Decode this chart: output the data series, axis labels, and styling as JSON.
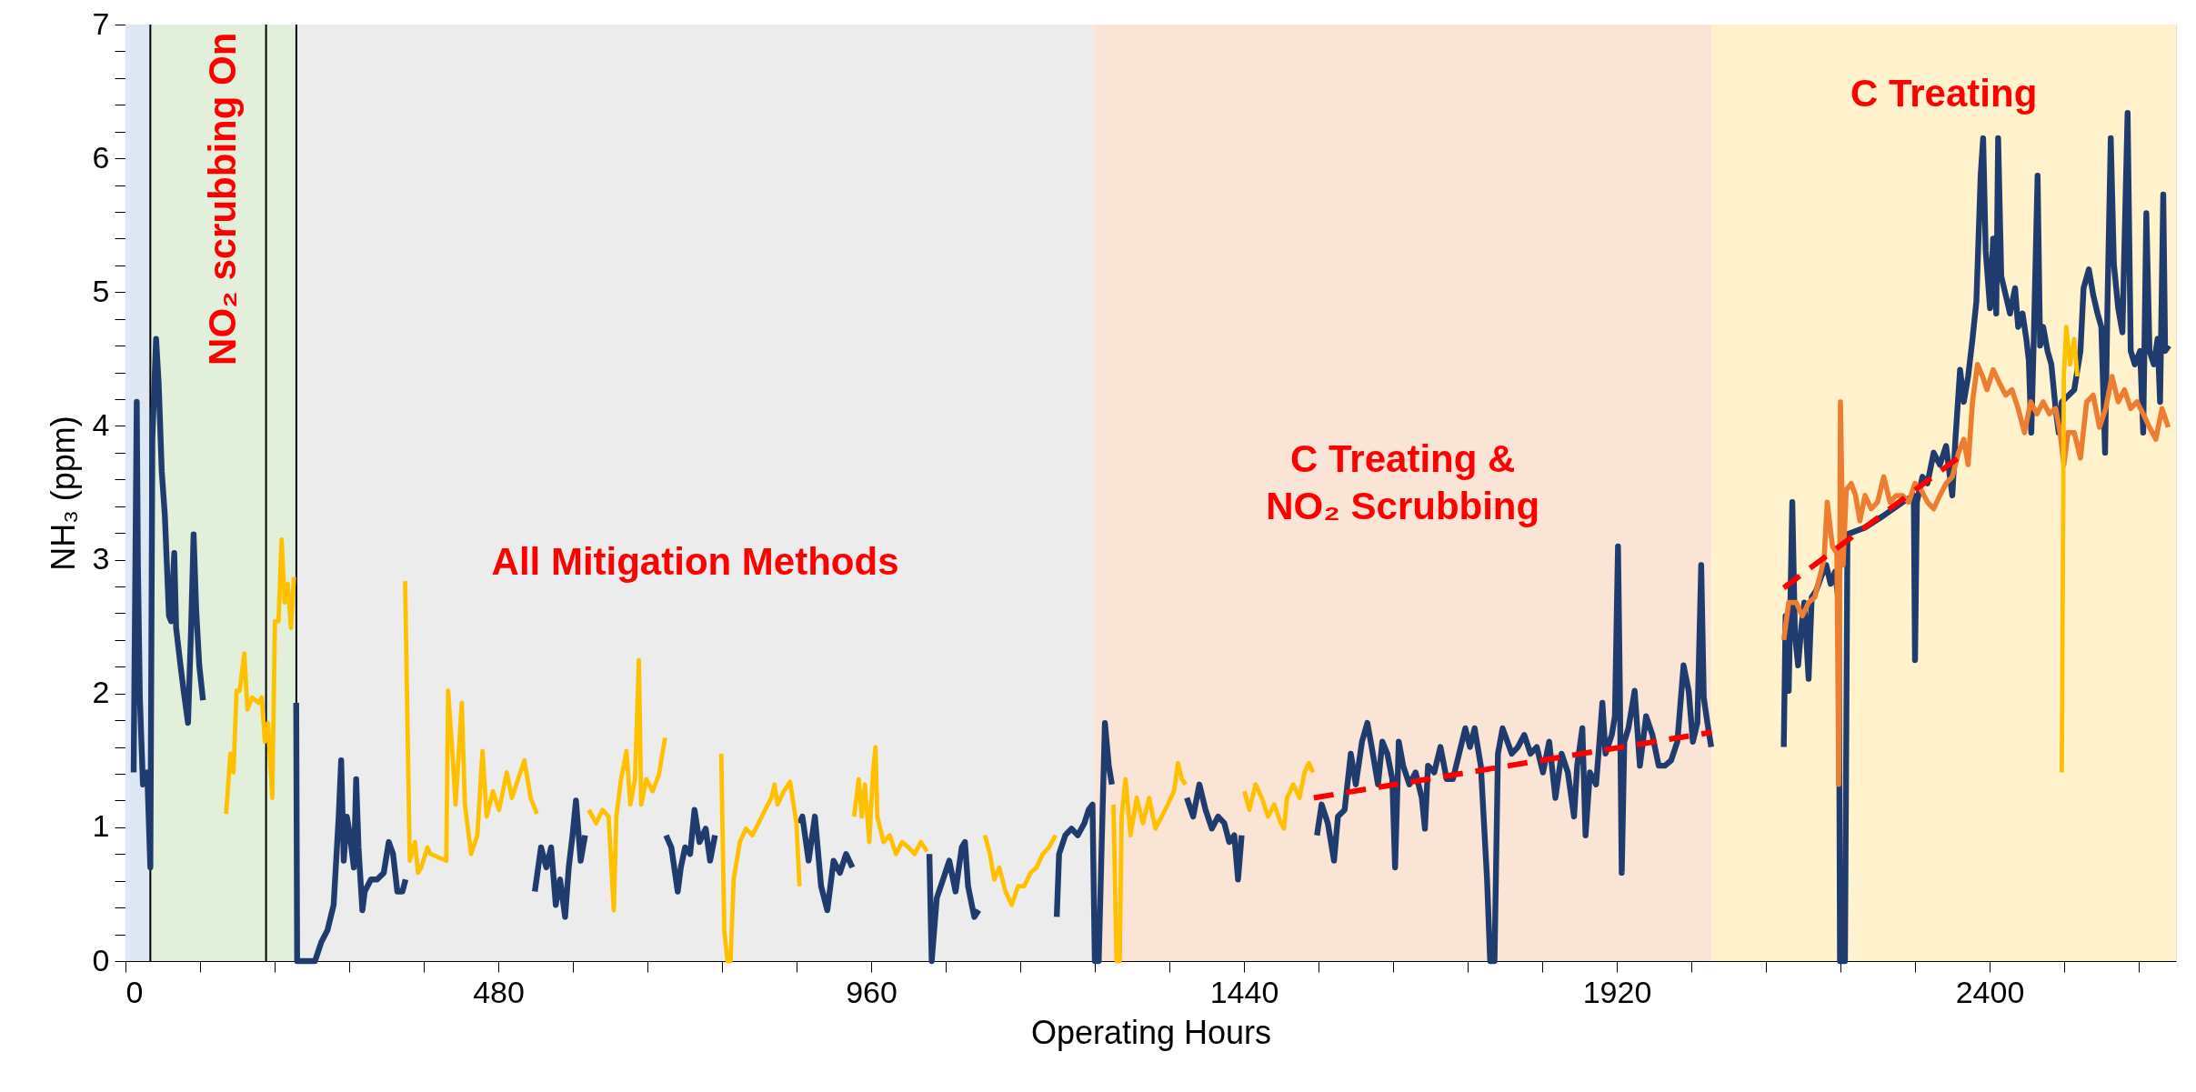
{
  "chart_data": {
    "type": "line",
    "xlabel": "Operating Hours",
    "ylabel": "NH₃ (ppm)",
    "xlim": [
      0,
      2640
    ],
    "ylim": [
      0,
      7
    ],
    "xticks": [
      0,
      {
        "value": 96,
        "label": null
      },
      {
        "value": 192,
        "label": null
      },
      {
        "value": 288,
        "label": null
      },
      {
        "value": 384,
        "label": null
      },
      480,
      {
        "value": 576,
        "label": null
      },
      {
        "value": 672,
        "label": null
      },
      {
        "value": 768,
        "label": null
      },
      {
        "value": 864,
        "label": null
      },
      960,
      {
        "value": 1056,
        "label": null
      },
      {
        "value": 1152,
        "label": null
      },
      {
        "value": 1248,
        "label": null
      },
      {
        "value": 1344,
        "label": null
      },
      1440,
      {
        "value": 1536,
        "label": null
      },
      {
        "value": 1632,
        "label": null
      },
      {
        "value": 1728,
        "label": null
      },
      {
        "value": 1824,
        "label": null
      },
      1920,
      {
        "value": 2016,
        "label": null
      },
      {
        "value": 2112,
        "label": null
      },
      {
        "value": 2208,
        "label": null
      },
      {
        "value": 2304,
        "label": null
      },
      2400,
      {
        "value": 2496,
        "label": null
      },
      {
        "value": 2592,
        "label": null
      }
    ],
    "yticks": [
      0,
      {
        "value": 0.2,
        "label": null
      },
      {
        "value": 0.4,
        "label": null
      },
      {
        "value": 0.6,
        "label": null
      },
      {
        "value": 0.8,
        "label": null
      },
      1,
      {
        "value": 1.2,
        "label": null
      },
      {
        "value": 1.4,
        "label": null
      },
      {
        "value": 1.6,
        "label": null
      },
      {
        "value": 1.8,
        "label": null
      },
      2,
      {
        "value": 2.2,
        "label": null
      },
      {
        "value": 2.4,
        "label": null
      },
      {
        "value": 2.6,
        "label": null
      },
      {
        "value": 2.8,
        "label": null
      },
      3,
      {
        "value": 3.2,
        "label": null
      },
      {
        "value": 3.4,
        "label": null
      },
      {
        "value": 3.6,
        "label": null
      },
      {
        "value": 3.8,
        "label": null
      },
      4,
      {
        "value": 4.2,
        "label": null
      },
      {
        "value": 4.4,
        "label": null
      },
      {
        "value": 4.6,
        "label": null
      },
      {
        "value": 4.8,
        "label": null
      },
      5,
      {
        "value": 5.2,
        "label": null
      },
      {
        "value": 5.4,
        "label": null
      },
      {
        "value": 5.6,
        "label": null
      },
      {
        "value": 5.8,
        "label": null
      },
      6,
      {
        "value": 6.2,
        "label": null
      },
      {
        "value": 6.4,
        "label": null
      },
      {
        "value": 6.6,
        "label": null
      },
      {
        "value": 6.8,
        "label": null
      },
      7
    ],
    "grid": false,
    "marker": "none",
    "bands": [
      {
        "axis": "x",
        "from": 0,
        "to": 32,
        "color": "#dde8f4"
      },
      {
        "axis": "x",
        "from": 32,
        "to": 220,
        "color": "#e2efda",
        "label": "NO₂ scrubbing On"
      },
      {
        "axis": "x",
        "from": 220,
        "to": 1247,
        "color": "#ececec",
        "label": "All Mitigation Methods"
      },
      {
        "axis": "x",
        "from": 1247,
        "to": 2042,
        "color": "#fae4d6",
        "label": "C Treating &\nNO₂ Scrubbing"
      },
      {
        "axis": "x",
        "from": 2042,
        "to": 2640,
        "color": "#fff2cc",
        "label": "C Treating"
      }
    ],
    "ref_lines": [
      {
        "axis": "x",
        "value": 32,
        "color": "#000000"
      },
      {
        "axis": "x",
        "value": 181,
        "color": "#000000"
      },
      {
        "axis": "x",
        "value": 220,
        "color": "#000000"
      }
    ],
    "series": [
      {
        "color": "#203c6e",
        "x": [
          10.5,
          14.5,
          16,
          18.5,
          22.5,
          28,
          32,
          34.6,
          39.4,
          42.7,
          46.7,
          50.7,
          56,
          58.8,
          62.8,
          65.2,
          70.8,
          74.9,
          80.5,
          84.5,
          87.7,
          91,
          95,
          99.8,
          110,
          219.8,
          221,
          244,
          252,
          260,
          268,
          274.5,
          277.7,
          281,
          285,
          289,
          294,
          297,
          300,
          305,
          308,
          316,
          324,
          332.5,
          339,
          344.5,
          350,
          356.6,
          360.6,
          362,
          527,
          535,
          541.8,
          548,
          554,
          559.5,
          566,
          570.7,
          575.6,
          580,
          586,
          591.7,
          594,
          696,
          702.8,
          711,
          715,
          720.5,
          727,
          732.6,
          739,
          747,
          752.7,
          759,
          763,
          868,
          871.5,
          879.5,
          887.6,
          895.6,
          903.6,
          911.7,
          919.8,
          927.8,
          935.9,
          937,
          1035,
          1038,
          1044.5,
          1052.6,
          1060.6,
          1068.7,
          1076.7,
          1080.8,
          1084.8,
          1092.8,
          1098.5,
          1102,
          1199,
          1202,
          1210,
          1218,
          1226,
          1234.5,
          1240,
          1245,
          1248,
          1253,
          1258,
          1261,
          1266,
          1270,
          1271,
          1366.5,
          1374.6,
          1382.6,
          1390.6,
          1398.7,
          1406.8,
          1414.8,
          1421,
          1427.6,
          1432.4,
          1437,
          1439,
          1534,
          1540,
          1548,
          1556,
          1561,
          1569.6,
          1577.6,
          1584,
          1592,
          1598.9,
          1604.5,
          1612.6,
          1618.2,
          1624.6,
          1631,
          1634.6,
          1639.3,
          1645,
          1653,
          1661,
          1669,
          1673,
          1677,
          1685,
          1693,
          1701,
          1709,
          1717,
          1725,
          1731,
          1737,
          1745,
          1753,
          1757,
          1762.6,
          1767,
          1773,
          1784.8,
          1792.8,
          1800.9,
          1809,
          1817,
          1825,
          1833,
          1841,
          1849,
          1857,
          1865,
          1869,
          1875.7,
          1879.8,
          1885.4,
          1893.4,
          1901.5,
          1905.5,
          1913.6,
          1917.6,
          1921.6,
          1924,
          1926.4,
          1929.7,
          1935,
          1943,
          1949.8,
          1957.8,
          1965.9,
          1974,
          1982,
          1990,
          1998,
          2006,
          2012.6,
          2018,
          2023.8,
          2028.7,
          2032,
          2036.7,
          2041.6,
          2090,
          2135,
          2137.4,
          2141.4,
          2146,
          2149.4,
          2153.5,
          2157.5,
          2161.5,
          2167,
          2171,
          2176.8,
          2183,
          2189.7,
          2195.3,
          2201,
          2205.8,
          2207.4,
          2213.8,
          2217,
          2239.6,
          2263.7,
          2287.9,
          2302.4,
          2304,
          2306.4,
          2313.6,
          2320,
          2328,
          2336,
          2344,
          2352,
          2356,
          2362,
          2366.8,
          2372.4,
          2378,
          2383,
          2388.5,
          2391.7,
          2395,
          2400.6,
          2404.6,
          2408.6,
          2411,
          2415,
          2420.7,
          2426.3,
          2432.8,
          2436.8,
          2442.4,
          2447.3,
          2450.5,
          2453.7,
          2456.9,
          2461.8,
          2465,
          2469,
          2474.6,
          2479.5,
          2485,
          2489,
          2493,
          2509,
          2517,
          2521,
          2527.8,
          2533.4,
          2539,
          2543.9,
          2548.7,
          2552,
          2556,
          2560,
          2565.6,
          2571,
          2577.7,
          2581.7,
          2587,
          2593.8,
          2597.8,
          2601.8,
          2605.9,
          2611.5,
          2616.3,
          2619.5,
          2623.6,
          2626,
          2630.8
        ],
        "values": [
          1.41,
          4.18,
          2.96,
          1.97,
          1.32,
          1.41,
          0.7,
          3.9,
          4.65,
          4.32,
          3.66,
          3.33,
          2.58,
          2.54,
          3.05,
          2.49,
          2.21,
          2.02,
          1.78,
          2.49,
          3.19,
          2.63,
          2.21,
          1.95,
          null,
          1.93,
          0,
          0,
          0.14,
          0.23,
          0.42,
          1.08,
          1.5,
          0.75,
          1.08,
          0.94,
          0.7,
          1.36,
          0.85,
          0.38,
          0.52,
          0.61,
          0.61,
          0.66,
          0.89,
          0.8,
          0.52,
          0.52,
          0.61,
          null,
          0.52,
          0.85,
          0.7,
          0.85,
          0.42,
          0.61,
          0.33,
          0.7,
          0.94,
          1.2,
          0.75,
          0.94,
          null,
          0.94,
          0.85,
          0.52,
          0.7,
          0.85,
          0.8,
          1.13,
          0.89,
          0.99,
          0.75,
          0.94,
          null,
          1.03,
          1.08,
          0.75,
          1.08,
          0.56,
          0.38,
          0.75,
          0.66,
          0.8,
          0.7,
          null,
          0.8,
          0,
          0.47,
          0.61,
          0.75,
          0.52,
          0.85,
          0.89,
          0.56,
          0.33,
          0.38,
          null,
          0.33,
          0.8,
          0.94,
          0.99,
          0.94,
          1.03,
          1.13,
          1.17,
          0,
          0,
          1.13,
          1.78,
          1.46,
          1.32,
          null,
          1.22,
          1.08,
          1.32,
          1.13,
          0.99,
          1.08,
          1.03,
          0.89,
          0.94,
          0.61,
          0.94,
          null,
          0.94,
          1.17,
          1.03,
          0.75,
          1.08,
          1.13,
          1.55,
          1.32,
          1.64,
          1.78,
          1.6,
          1.32,
          1.64,
          1.55,
          1.36,
          0.7,
          1.64,
          1.46,
          1.32,
          1.41,
          1.22,
          0.99,
          1.46,
          1.41,
          1.6,
          1.36,
          1.36,
          1.55,
          1.74,
          1.6,
          1.74,
          1.46,
          0.61,
          0,
          0,
          1.55,
          1.74,
          1.55,
          1.6,
          1.69,
          1.55,
          1.6,
          1.41,
          1.64,
          1.22,
          1.55,
          1.41,
          1.08,
          1.46,
          1.74,
          0.94,
          1.41,
          1.32,
          1.93,
          1.55,
          1.69,
          1.83,
          3.1,
          2.02,
          0.66,
          1.64,
          1.74,
          2.02,
          1.46,
          1.83,
          1.69,
          1.46,
          1.46,
          1.5,
          1.64,
          2.21,
          2.02,
          1.64,
          1.78,
          2.96,
          1.97,
          1.78,
          1.6,
          null,
          1.6,
          2.58,
          2.02,
          3.43,
          2.44,
          2.21,
          2.49,
          2.68,
          2.11,
          2.72,
          2.77,
          2.87,
          2.96,
          2.82,
          2.91,
          2.68,
          0,
          0,
          3.19,
          3.24,
          3.33,
          3.43,
          3.48,
          2.25,
          3.43,
          3.62,
          3.57,
          3.8,
          3.71,
          3.85,
          3.48,
          3.9,
          4.42,
          4.18,
          4.37,
          4.65,
          4.93,
          5.87,
          6.15,
          5.31,
          4.88,
          5.4,
          4.84,
          6.15,
          5.12,
          4.98,
          4.84,
          5.03,
          4.74,
          4.84,
          4.65,
          4.49,
          3.95,
          4.65,
          5.87,
          4.6,
          4.74,
          4.56,
          4.46,
          4.13,
          3.95,
          4.18,
          4.27,
          4.56,
          5.03,
          5.17,
          4.98,
          4.84,
          4.74,
          3.8,
          4.98,
          6.15,
          5.21,
          4.88,
          4.7,
          6.34,
          4.56,
          4.46,
          4.56,
          3.95,
          5.59,
          4.56,
          4.46,
          4.65,
          4.18,
          5.73,
          4.56,
          4.6
        ]
      },
      {
        "color": "#ed7d31",
        "x": [
          2135,
          2141.4,
          2151,
          2159,
          2167,
          2175,
          2187,
          2191,
          2197.7,
          2203.4,
          2205.8,
          2208,
          2211.4,
          2215.4,
          2221.9,
          2227.5,
          2233,
          2239.6,
          2247.6,
          2255.7,
          2263.7,
          2271.8,
          2279.8,
          2287.9,
          2296,
          2304,
          2312,
          2320,
          2328,
          2336,
          2344,
          2352,
          2360,
          2366.8,
          2372.4,
          2378,
          2384.5,
          2391,
          2396.6,
          2404.6,
          2412.7,
          2420.7,
          2428.8,
          2436.8,
          2444.9,
          2452.9,
          2461,
          2469,
          2477,
          2485,
          2490.7,
          2495.6,
          2501,
          2509,
          2517,
          2525,
          2533.4,
          2541.5,
          2549.5,
          2557.6,
          2565.6,
          2573.6,
          2581.7,
          2589.7,
          2597.8,
          2605.9,
          2614,
          2622,
          2630
        ],
        "values": [
          2.4,
          2.68,
          2.68,
          2.58,
          2.68,
          2.72,
          3.01,
          3.43,
          3.1,
          3.05,
          1.32,
          4.18,
          2.96,
          3.52,
          3.57,
          3.48,
          3.29,
          3.48,
          3.38,
          3.43,
          3.62,
          3.43,
          3.48,
          3.48,
          3.43,
          3.57,
          3.52,
          3.43,
          3.38,
          3.48,
          3.57,
          3.62,
          3.8,
          3.9,
          3.71,
          4.18,
          4.46,
          4.37,
          4.27,
          4.42,
          4.32,
          4.23,
          4.27,
          4.13,
          3.95,
          4.18,
          4.09,
          4.18,
          4.09,
          4.13,
          3.95,
          3.71,
          3.95,
          3.95,
          3.76,
          4.18,
          4.23,
          3.99,
          4.13,
          4.37,
          4.18,
          4.27,
          4.13,
          4.18,
          4.09,
          3.99,
          3.9,
          4.13,
          3.99
        ]
      },
      {
        "color": "#ffc000",
        "x": [
          129.6,
          135,
          139,
          143,
          147,
          153,
          157,
          163,
          171.5,
          175.5,
          179.5,
          183.5,
          189,
          192.4,
          197,
          201,
          205,
          209,
          213,
          217,
          218,
          360,
          366,
          372.7,
          376.7,
          380.8,
          388.8,
          392.8,
          413,
          415.4,
          421,
          425,
          433,
          437,
          445,
          453,
          459.7,
          465,
          473,
          481,
          491,
          497.5,
          505.5,
          513.6,
          521.6,
          529.7,
          531,
          596.5,
          606,
          614,
          622,
          628.7,
          632,
          638,
          645,
          650,
          656,
          661,
          664,
          670.6,
          678.6,
          686.7,
          694.7,
          695.5,
          767,
          771,
          775,
          779,
          783,
          791,
          799,
          807,
          815,
          823.5,
          831.6,
          835.6,
          839.6,
          847.7,
          855.7,
          863.8,
          867.8,
          868.5,
          938,
          944,
          948,
          952,
          957.6,
          962.4,
          965.6,
          968,
          976,
          984,
          992,
          1000,
          1008,
          1016,
          1024,
          1032,
          1033,
          1106.5,
          1113,
          1118.6,
          1125,
          1133,
          1141,
          1149.2,
          1157,
          1165.4,
          1173,
          1181,
          1189,
          1197.5,
          1198,
          1272,
          1276,
          1280,
          1282.6,
          1287.5,
          1294,
          1302,
          1310,
          1318,
          1326,
          1334,
          1342,
          1350,
          1355,
          1360,
          1365,
          1366,
          1440.6,
          1447,
          1455,
          1463,
          1471,
          1479,
          1487.5,
          1491.5,
          1495.5,
          1503.5,
          1511.5,
          1518,
          1523.5,
          1529,
          1600,
          2493,
          2495.6,
          2498.8,
          2503.6,
          2509,
          2513
        ],
        "values": [
          1.1,
          1.55,
          1.41,
          2.02,
          2.02,
          2.3,
          1.88,
          1.97,
          1.93,
          1.97,
          1.64,
          1.78,
          1.22,
          2.54,
          2.54,
          3.15,
          2.68,
          2.82,
          2.49,
          2.87,
          null,
          2.84,
          0.75,
          0.89,
          0.66,
          0.7,
          0.85,
          0.8,
          0.75,
          2.02,
          1.55,
          1.17,
          1.93,
          1.17,
          0.8,
          0.94,
          1.57,
          1.08,
          1.27,
          1.13,
          1.41,
          1.22,
          1.36,
          1.5,
          1.22,
          1.1,
          null,
          1.13,
          1.03,
          1.13,
          1.08,
          0.38,
          1.08,
          1.36,
          1.57,
          1.17,
          1.36,
          2.25,
          1.17,
          1.36,
          1.27,
          1.39,
          1.67,
          null,
          1.55,
          0.23,
          0,
          0,
          0.61,
          0.89,
          0.99,
          0.94,
          1.03,
          1.13,
          1.22,
          1.32,
          1.17,
          1.27,
          1.34,
          1.03,
          0.56,
          null,
          1.08,
          1.36,
          1.08,
          1.32,
          0.89,
          1.41,
          1.6,
          1.08,
          0.89,
          0.94,
          0.8,
          0.89,
          0.85,
          0.8,
          0.89,
          0.82,
          null,
          0.94,
          0.8,
          0.61,
          0.7,
          0.52,
          0.42,
          0.56,
          0.56,
          0.66,
          0.7,
          0.8,
          0.85,
          0.94,
          null,
          1.17,
          0,
          0,
          1.08,
          1.36,
          0.94,
          1.22,
          1.03,
          1.22,
          0.99,
          1.08,
          1.17,
          1.27,
          1.48,
          1.36,
          1.32,
          null,
          1.27,
          1.13,
          1.32,
          1.22,
          1.08,
          1.17,
          1.03,
          0.99,
          1.22,
          1.32,
          1.22,
          1.41,
          1.48,
          1.41,
          null,
          1.41,
          4.37,
          4.74,
          4.46,
          4.65,
          4.37
        ]
      },
      {
        "color": "#ff0000",
        "line_style": "dashed",
        "x": [
          1530,
          2042,
          2090,
          2135,
          2364
        ],
        "values": [
          1.22,
          1.71,
          null,
          2.79,
          3.78
        ]
      }
    ]
  }
}
